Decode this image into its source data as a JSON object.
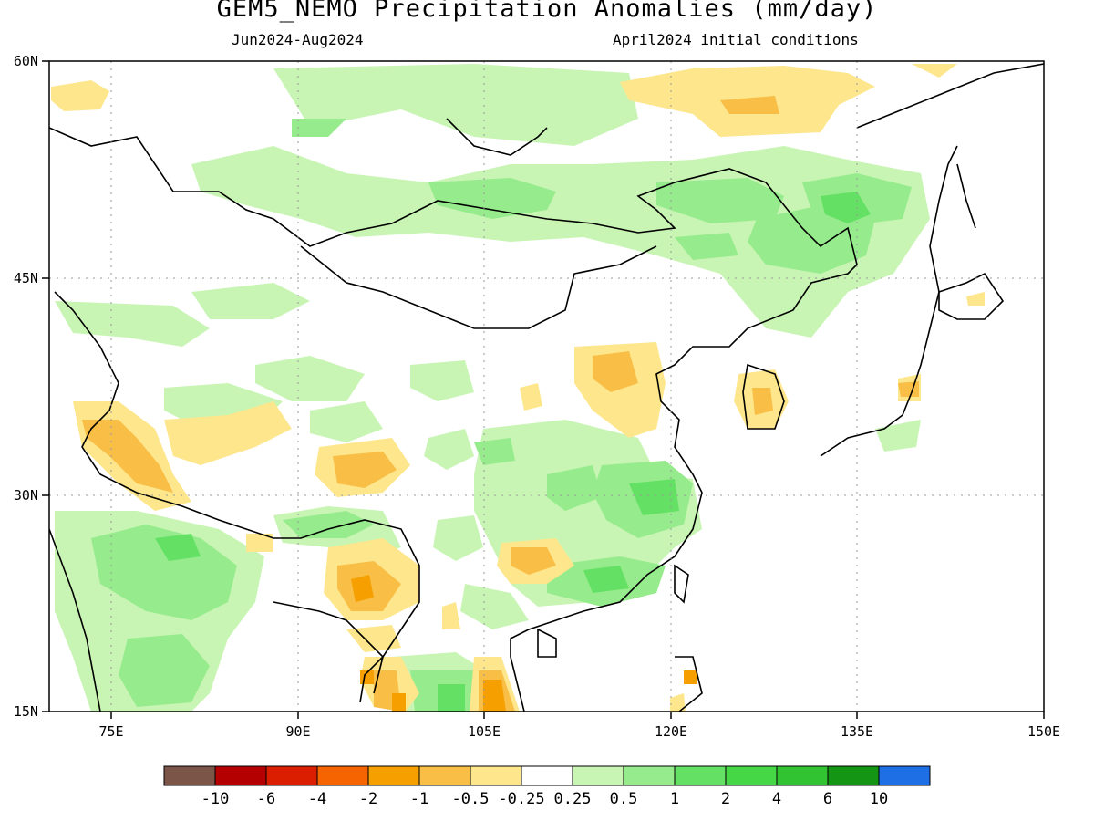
{
  "title": "GEM5_NEMO Precipitation Anomalies (mm/day)",
  "subtitle_left": "Jun2024-Aug2024",
  "subtitle_right": "April2024 initial conditions",
  "map": {
    "lon_range": [
      70,
      150
    ],
    "lat_range": [
      15,
      60
    ],
    "x_tick_labels": [
      "75E",
      "90E",
      "105E",
      "120E",
      "135E",
      "150E"
    ],
    "y_tick_labels": [
      "15N",
      "30N",
      "45N",
      "60N"
    ],
    "gridlines": "dotted"
  },
  "colorbar": {
    "colors": [
      "#7a5548",
      "#b40000",
      "#dc1e00",
      "#f56400",
      "#f5a000",
      "#f8be46",
      "#fde68c",
      "#ffffff",
      "#c8f5b4",
      "#96eb8c",
      "#64e164",
      "#46d746",
      "#32c332",
      "#149614",
      "#1e6ee6"
    ],
    "labels": [
      "-10",
      "-6",
      "-4",
      "-2",
      "-1",
      "-0.5",
      "-0.25",
      "0.25",
      "0.5",
      "1",
      "2",
      "4",
      "6",
      "10"
    ]
  },
  "legend_colors": {
    "dry_moderate": "#f8be46",
    "dry_light": "#fde68c",
    "dry_strong": "#f5a000",
    "wet_light": "#c8f5b4",
    "wet_moderate": "#96eb8c",
    "wet_strong": "#64e164"
  }
}
